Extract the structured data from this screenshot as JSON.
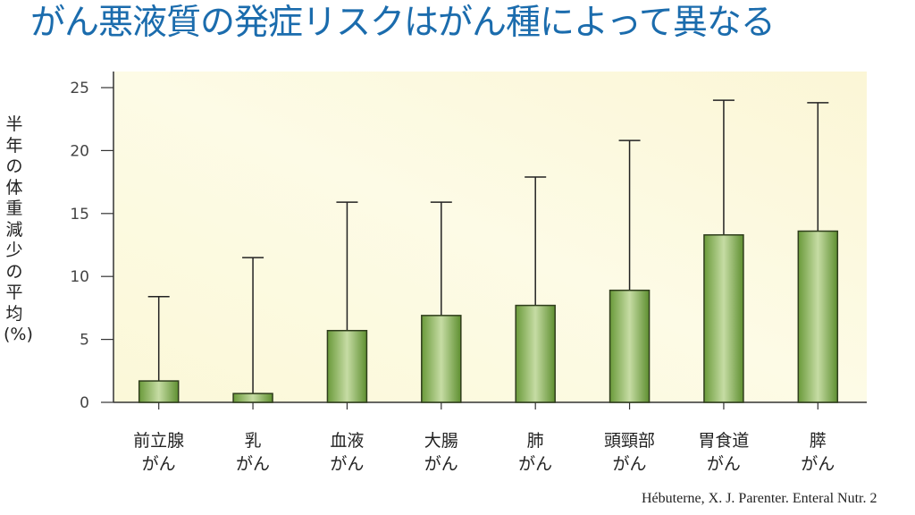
{
  "title": "がん悪液質の発症リスクはがん種によって異なる",
  "citation": "Hébuterne, X. J. Parenter. Enteral Nutr. 2",
  "chart_data": {
    "type": "bar",
    "title": "がん悪液質の発症リスクはがん種によって異なる",
    "xlabel": "",
    "ylabel": "半年の体重減少の平均(%)",
    "ylim": [
      0,
      25
    ],
    "yticks": [
      "0",
      "5",
      "10",
      "15",
      "20",
      "25"
    ],
    "categories": [
      [
        "前立腺",
        "がん"
      ],
      [
        "乳",
        "がん"
      ],
      [
        "血液",
        "がん"
      ],
      [
        "大腸",
        "がん"
      ],
      [
        "肺",
        "がん"
      ],
      [
        "頭頸部",
        "がん"
      ],
      [
        "胃食道",
        "がん"
      ],
      [
        "膵",
        "がん"
      ]
    ],
    "values": [
      1.7,
      0.7,
      5.7,
      6.9,
      7.7,
      8.9,
      13.3,
      13.6
    ],
    "error_upper": [
      8.4,
      11.5,
      15.9,
      15.9,
      17.9,
      20.8,
      24.0,
      23.8
    ],
    "grid": false,
    "colors": {
      "bar": "#7fa84e",
      "bar_light": "#c6dca4",
      "background": "#fbf9dd",
      "title": "#1b6cad"
    }
  }
}
